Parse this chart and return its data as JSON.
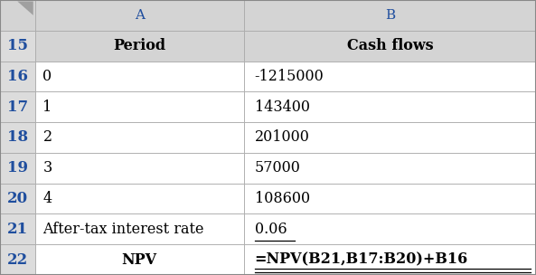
{
  "col_header_row": [
    "",
    "A",
    "B"
  ],
  "row_numbers": [
    "15",
    "16",
    "17",
    "18",
    "19",
    "20",
    "21",
    "22"
  ],
  "col_a": [
    "Period",
    "0",
    "1",
    "2",
    "3",
    "4",
    "After-tax interest rate",
    "NPV"
  ],
  "col_b": [
    "Cash flows",
    "-1215000",
    "143400",
    "201000",
    "57000",
    "108600",
    "0.06",
    "=NPV(B21,B17:B20)+B16"
  ],
  "col_a_bold": [
    true,
    false,
    false,
    false,
    false,
    false,
    false,
    true
  ],
  "col_b_bold": [
    true,
    false,
    false,
    false,
    false,
    false,
    false,
    true
  ],
  "col_a_align": [
    "center",
    "left",
    "left",
    "left",
    "left",
    "left",
    "left",
    "center"
  ],
  "col_b_align": [
    "center",
    "left",
    "left",
    "left",
    "left",
    "left",
    "left",
    "left"
  ],
  "header_bg": "#d4d4d4",
  "white_bg": "#ffffff",
  "row_num_bg": "#dcdcdc",
  "row_num_color": "#1f4e9e",
  "col_header_color": "#1f4e9e",
  "border_color": "#aaaaaa",
  "border_color_dark": "#888888",
  "fig_width": 5.93,
  "fig_height": 3.04,
  "dpi": 100,
  "font_size": 11.5,
  "header_font_size": 11,
  "row_num_font_size": 12
}
